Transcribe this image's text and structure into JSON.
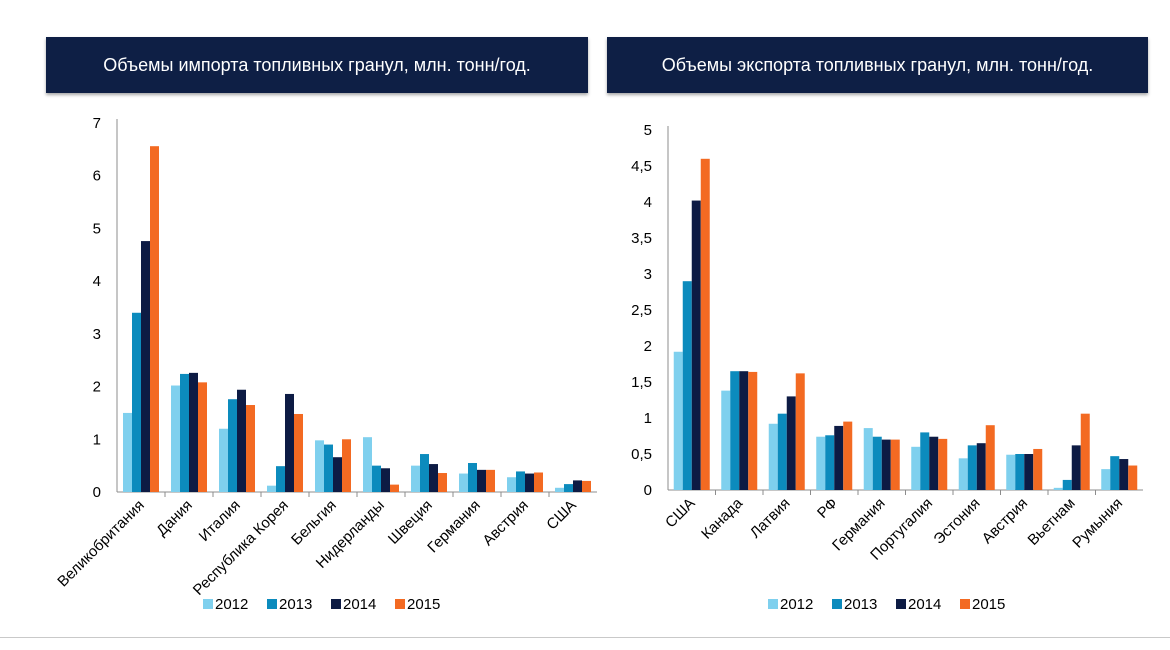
{
  "colors": {
    "header_bg": "#0e1f45",
    "s2012": "#7fd0ee",
    "s2013": "#0c8bbd",
    "s2014": "#0d1b44",
    "s2015": "#f36a22"
  },
  "chart_data": [
    {
      "type": "bar",
      "title": "Объемы импорта топливных гранул, млн. тонн/год.",
      "categories": [
        "Великобритания",
        "Дания",
        "Италия",
        "Республика Корея",
        "Бельгия",
        "Нидерланды",
        "Швеция",
        "Германия",
        "Австрия",
        "США"
      ],
      "series": [
        {
          "name": "2012",
          "values": [
            1.5,
            2.02,
            1.2,
            0.12,
            0.98,
            1.04,
            0.5,
            0.35,
            0.28,
            0.08
          ]
        },
        {
          "name": "2013",
          "values": [
            3.4,
            2.24,
            1.76,
            0.49,
            0.9,
            0.5,
            0.72,
            0.55,
            0.39,
            0.15
          ]
        },
        {
          "name": "2014",
          "values": [
            4.76,
            2.26,
            1.94,
            1.86,
            0.66,
            0.45,
            0.53,
            0.42,
            0.35,
            0.22
          ]
        },
        {
          "name": "2015",
          "values": [
            6.56,
            2.08,
            1.65,
            1.48,
            1.0,
            0.14,
            0.36,
            0.42,
            0.37,
            0.21
          ]
        }
      ],
      "ylim": [
        0,
        7
      ],
      "yticks": [
        "0",
        "1",
        "2",
        "3",
        "4",
        "5",
        "6",
        "7"
      ],
      "legend": [
        "2012",
        "2013",
        "2014",
        "2015"
      ],
      "legend_position": "bottom",
      "grid": false
    },
    {
      "type": "bar",
      "title": "Объемы экспорта топливных гранул, млн. тонн/год.",
      "categories": [
        "США",
        "Канада",
        "Латвия",
        "РФ",
        "Германия",
        "Португалия",
        "Эстония",
        "Австрия",
        "Вьетнам",
        "Румыния"
      ],
      "series": [
        {
          "name": "2012",
          "values": [
            1.92,
            1.38,
            0.92,
            0.74,
            0.86,
            0.6,
            0.44,
            0.49,
            0.03,
            0.29
          ]
        },
        {
          "name": "2013",
          "values": [
            2.9,
            1.65,
            1.06,
            0.76,
            0.74,
            0.8,
            0.62,
            0.5,
            0.14,
            0.47
          ]
        },
        {
          "name": "2014",
          "values": [
            4.02,
            1.65,
            1.3,
            0.89,
            0.7,
            0.74,
            0.65,
            0.5,
            0.62,
            0.43
          ]
        },
        {
          "name": "2015",
          "values": [
            4.6,
            1.64,
            1.62,
            0.95,
            0.7,
            0.71,
            0.9,
            0.57,
            1.06,
            0.34
          ]
        }
      ],
      "ylim": [
        0,
        5
      ],
      "yticks": [
        "0",
        "0,5",
        "1",
        "1,5",
        "2",
        "2,5",
        "3",
        "3,5",
        "4",
        "4,5",
        "5"
      ],
      "legend": [
        "2012",
        "2013",
        "2014",
        "2015"
      ],
      "legend_position": "bottom",
      "grid": false
    }
  ]
}
